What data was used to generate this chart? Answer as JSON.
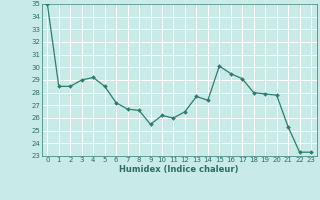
{
  "x": [
    0,
    1,
    2,
    3,
    4,
    5,
    6,
    7,
    8,
    9,
    10,
    11,
    12,
    13,
    14,
    15,
    16,
    17,
    18,
    19,
    20,
    21,
    22,
    23
  ],
  "y": [
    35.0,
    28.5,
    28.5,
    29.0,
    29.2,
    28.5,
    27.2,
    26.7,
    26.6,
    25.5,
    26.2,
    26.0,
    26.5,
    27.7,
    27.4,
    30.1,
    29.5,
    29.1,
    28.0,
    27.9,
    27.8,
    25.3,
    23.3,
    23.3
  ],
  "line_color": "#2d7d6e",
  "marker_color": "#2d7d6e",
  "bg_color": "#c8ebe8",
  "grid_color": "#ffffff",
  "xlabel": "Humidex (Indice chaleur)",
  "ylim": [
    23,
    35
  ],
  "yticks": [
    23,
    24,
    25,
    26,
    27,
    28,
    29,
    30,
    31,
    32,
    33,
    34,
    35
  ],
  "xticks": [
    0,
    1,
    2,
    3,
    4,
    5,
    6,
    7,
    8,
    9,
    10,
    11,
    12,
    13,
    14,
    15,
    16,
    17,
    18,
    19,
    20,
    21,
    22,
    23
  ],
  "tick_fontsize": 5.0,
  "label_fontsize": 6.0,
  "line_width": 0.9,
  "marker_size": 2.0
}
